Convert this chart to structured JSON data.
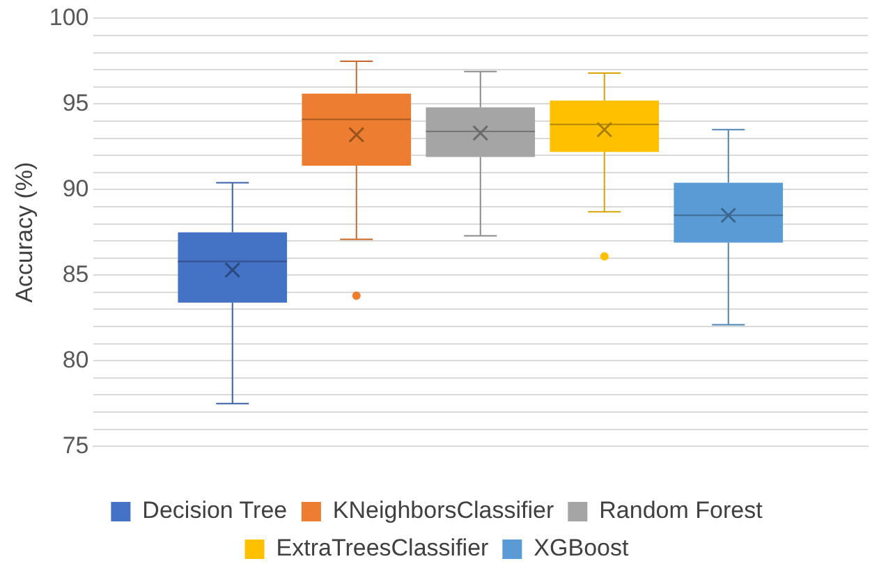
{
  "chart_data": {
    "type": "box",
    "ylabel": "Accuracy (%)",
    "categories": [
      null
    ],
    "ylim": [
      75,
      100
    ],
    "yticks": [
      75,
      {
        "value": 76,
        "label": null
      },
      {
        "value": 77,
        "label": null
      },
      {
        "value": 78,
        "label": null
      },
      {
        "value": 79,
        "label": null
      },
      80,
      {
        "value": 81,
        "label": null
      },
      {
        "value": 82,
        "label": null
      },
      {
        "value": 83,
        "label": null
      },
      {
        "value": 84,
        "label": null
      },
      85,
      {
        "value": 86,
        "label": null
      },
      {
        "value": 87,
        "label": null
      },
      {
        "value": 88,
        "label": null
      },
      {
        "value": 89,
        "label": null
      },
      90,
      {
        "value": 91,
        "label": null
      },
      {
        "value": 92,
        "label": null
      },
      {
        "value": 93,
        "label": null
      },
      {
        "value": 94,
        "label": null
      },
      95,
      {
        "value": 96,
        "label": null
      },
      {
        "value": 97,
        "label": null
      },
      {
        "value": 98,
        "label": null
      },
      {
        "value": 99,
        "label": null
      },
      100
    ],
    "grid": "y",
    "legend": "bottom",
    "series": [
      {
        "name": "Decision Tree",
        "color": "#4472c4",
        "boxes": [
          {
            "low": 77.5,
            "q1": 83.4,
            "median": 85.8,
            "q3": 87.5,
            "high": 90.4,
            "mean": 85.3
          }
        ]
      },
      {
        "name": "KNeighborsClassifier",
        "color": "#ed7d31",
        "boxes": [
          {
            "low": 87.1,
            "q1": 91.4,
            "median": 94.1,
            "q3": 95.6,
            "high": 97.5,
            "mean": 93.2,
            "outliers": [
              83.8
            ]
          }
        ]
      },
      {
        "name": "Random Forest",
        "color": "#a5a5a5",
        "boxes": [
          {
            "low": 87.3,
            "q1": 91.9,
            "median": 93.4,
            "q3": 94.8,
            "high": 96.9,
            "mean": 93.3
          }
        ]
      },
      {
        "name": "ExtraTreesClassifier",
        "color": "#ffc000",
        "boxes": [
          {
            "low": 88.7,
            "q1": 92.2,
            "median": 93.8,
            "q3": 95.2,
            "high": 96.8,
            "mean": 93.5,
            "outliers": [
              86.1
            ]
          }
        ]
      },
      {
        "name": "XGBoost",
        "color": "#5b9bd5",
        "boxes": [
          {
            "low": 82.1,
            "q1": 86.9,
            "median": 88.5,
            "q3": 90.4,
            "high": 93.5,
            "mean": 88.5
          }
        ]
      }
    ]
  }
}
